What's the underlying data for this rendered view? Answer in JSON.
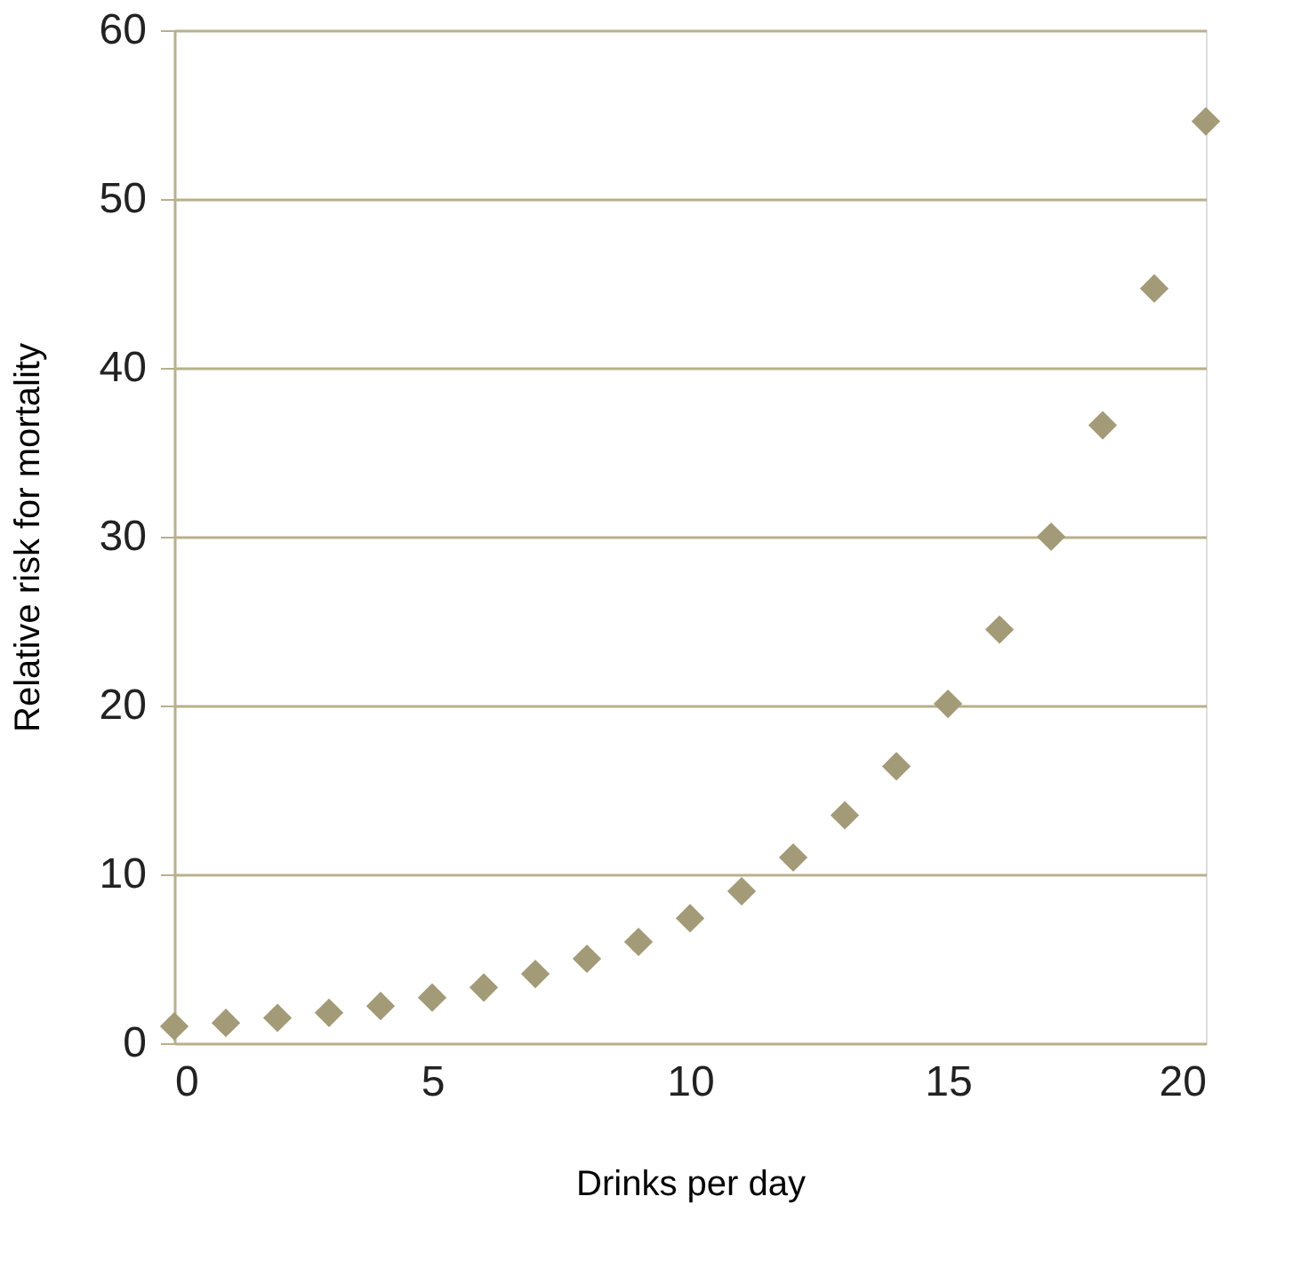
{
  "chart_data": {
    "type": "scatter",
    "xlabel": "Drinks per day",
    "ylabel": "Relative risk for mortality",
    "x": [
      0,
      1,
      2,
      3,
      4,
      5,
      6,
      7,
      8,
      9,
      10,
      11,
      12,
      13,
      14,
      15,
      16,
      17,
      18,
      19,
      20
    ],
    "series": [
      {
        "color": "#a39a78",
        "values": [
          1.0,
          1.2,
          1.5,
          1.8,
          2.2,
          2.7,
          3.3,
          4.1,
          5.0,
          6.0,
          7.4,
          9.0,
          11.0,
          13.5,
          16.4,
          20.1,
          24.5,
          30.0,
          36.6,
          44.7,
          54.6
        ]
      }
    ],
    "xlim": [
      0,
      20
    ],
    "xticks": [
      0,
      5,
      10,
      15,
      20
    ],
    "ylim": [
      0,
      60
    ],
    "yticks": [
      0,
      10,
      20,
      30,
      40,
      50,
      60
    ],
    "grid": "y",
    "marker": "diamond",
    "legend": false
  }
}
